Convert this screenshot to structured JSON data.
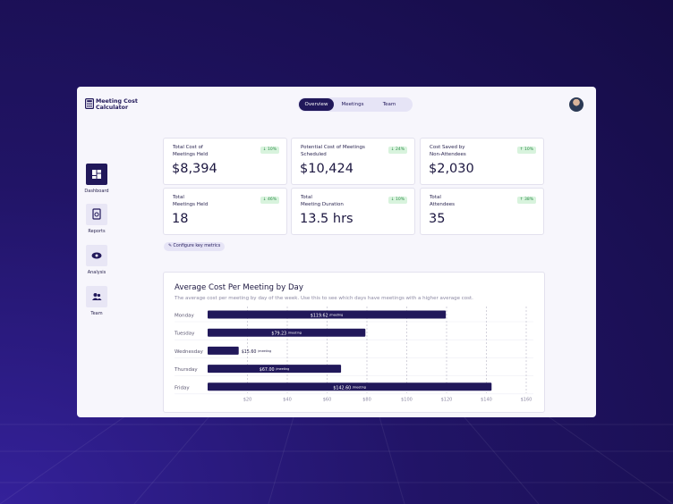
{
  "header": {
    "app_name": [
      "Meeting Cost",
      "Calculator"
    ],
    "tabs": [
      "Overview",
      "Meetings",
      "Team"
    ],
    "active_tab": 0
  },
  "sidebar": {
    "items": [
      "Dashboard",
      "Reports",
      "Analysis",
      "Team"
    ],
    "active": 0
  },
  "metrics": [
    {
      "label": [
        "Total Cost of",
        "Meetings Held"
      ],
      "value": "$8,394",
      "change": "10%",
      "trend": "down"
    },
    {
      "label": [
        "Potential Cost of Meetings",
        "Scheduled"
      ],
      "value": "$10,424",
      "change": "24%",
      "trend": "down"
    },
    {
      "label": [
        "Cost Saved by",
        "Non-Attendees"
      ],
      "value": "$2,030",
      "change": "10%",
      "trend": "up"
    },
    {
      "label": [
        "Total",
        "Meetings Held"
      ],
      "value": "18",
      "change": "46%",
      "trend": "down"
    },
    {
      "label": [
        "Total",
        "Meeting Duration"
      ],
      "value": "13.5 hrs",
      "change": "10%",
      "trend": "down"
    },
    {
      "label": [
        "Total",
        "Attendees"
      ],
      "value": "35",
      "change": "38%",
      "trend": "up"
    }
  ],
  "configure_button": "Configure key metrics",
  "chart_data": {
    "type": "bar",
    "orientation": "horizontal",
    "title": "Average Cost Per Meeting by Day",
    "subtitle": "The average cost per meeting by day of the week. Use this to see which days have meetings with a higher average cost.",
    "categories": [
      "Monday",
      "Tuesday",
      "Wednesday",
      "Thursday",
      "Friday"
    ],
    "values": [
      119.62,
      79.23,
      15.6,
      67,
      142.6
    ],
    "value_labels": [
      "$119.62",
      "$79.23",
      "$15.60",
      "$67.00",
      "$142.60"
    ],
    "value_unit": "/meeting",
    "color": "#21185a",
    "xlim": [
      0,
      160
    ],
    "xticks": [
      {
        "value": 20,
        "label": "$20"
      },
      {
        "value": 40,
        "label": "$40"
      },
      {
        "value": 60,
        "label": "$60"
      },
      {
        "value": 80,
        "label": "$80"
      },
      {
        "value": 100,
        "label": "$100"
      },
      {
        "value": 120,
        "label": "$120"
      },
      {
        "value": 140,
        "label": "$140"
      },
      {
        "value": 160,
        "label": "$160"
      }
    ],
    "grid": true
  }
}
